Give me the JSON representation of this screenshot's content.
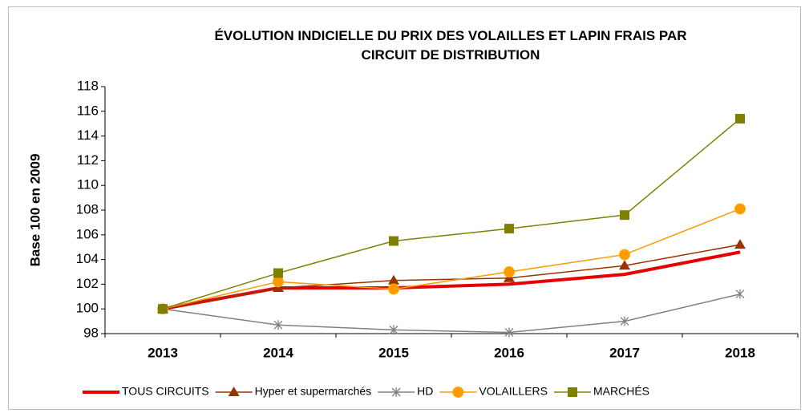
{
  "chart_data": {
    "type": "line",
    "title": "ÉVOLUTION INDICIELLE DU PRIX DES VOLAILLES ET LAPIN FRAIS PAR CIRCUIT DE DISTRIBUTION",
    "y_label": "Base 100 en 2009",
    "categories": [
      "2013",
      "2014",
      "2015",
      "2016",
      "2017",
      "2018"
    ],
    "series": [
      {
        "name": "TOUS CIRCUITS",
        "color": "#e60000",
        "marker": "none",
        "width": 4,
        "values": [
          100,
          101.7,
          101.7,
          102.0,
          102.8,
          104.6
        ]
      },
      {
        "name": "Hyper et supermarchés",
        "color": "#993300",
        "marker": "triangle",
        "width": 1.5,
        "values": [
          100,
          101.7,
          102.3,
          102.5,
          103.5,
          105.2
        ]
      },
      {
        "name": "HD",
        "color": "#808080",
        "marker": "star",
        "width": 1.5,
        "values": [
          100,
          98.7,
          98.3,
          98.1,
          99.0,
          101.2
        ]
      },
      {
        "name": "VOLAILLERS",
        "color": "#ff9900",
        "marker": "circle",
        "width": 1.5,
        "values": [
          100,
          102.2,
          101.6,
          103.0,
          104.4,
          108.1
        ]
      },
      {
        "name": "MARCHÉS",
        "color": "#808000",
        "marker": "square",
        "width": 1.5,
        "values": [
          100,
          102.9,
          105.5,
          106.5,
          107.6,
          115.4
        ]
      }
    ],
    "ylim": [
      98,
      118
    ],
    "yticks": [
      98,
      100,
      102,
      104,
      106,
      108,
      110,
      112,
      114,
      116,
      118
    ],
    "grid": false,
    "legend": "bottom"
  }
}
